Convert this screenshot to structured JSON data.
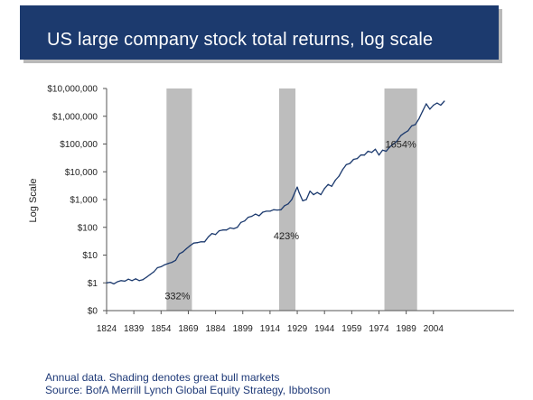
{
  "title": "US large company stock total returns, log scale",
  "footnotes": {
    "line1": "Annual data. Shading denotes great bull markets",
    "line2": "Source: BofA Merrill Lynch Global Equity Strategy, Ibbotson"
  },
  "chart_data": {
    "type": "line",
    "title": "US large company stock total returns, log scale",
    "ylabel": "Log Scale",
    "xlabel": "",
    "yscale": "log10",
    "x_ticks": [
      "1824",
      "1839",
      "1854",
      "1869",
      "1884",
      "1899",
      "1914",
      "1929",
      "1944",
      "1959",
      "1974",
      "1989",
      "2004"
    ],
    "y_ticks": [
      "$0",
      "$1",
      "$10",
      "$100",
      "$1,000",
      "$10,000",
      "$100,000",
      "$1,000,000",
      "$10,000,000"
    ],
    "xlim": [
      1824,
      2010
    ],
    "grid": false,
    "legend": "none",
    "colors": {
      "line": "#1c3a6e",
      "shade": "#bdbdbd",
      "title_bg": "#1c3a6e"
    },
    "shaded_periods": [
      {
        "start": 1857,
        "end": 1871
      },
      {
        "start": 1919,
        "end": 1928
      },
      {
        "start": 1977,
        "end": 1995
      }
    ],
    "annotations": [
      {
        "text": "332%",
        "x": 1863,
        "y": 0.35
      },
      {
        "text": "423%",
        "x": 1923,
        "y": 50
      },
      {
        "text": "1654%",
        "x": 1986,
        "y": 100000
      }
    ],
    "series": [
      {
        "values": [
          [
            1824,
            1.0
          ],
          [
            1826,
            1.05
          ],
          [
            1828,
            0.92
          ],
          [
            1830,
            1.1
          ],
          [
            1832,
            1.2
          ],
          [
            1834,
            1.15
          ],
          [
            1836,
            1.35
          ],
          [
            1838,
            1.2
          ],
          [
            1840,
            1.4
          ],
          [
            1842,
            1.2
          ],
          [
            1844,
            1.3
          ],
          [
            1846,
            1.6
          ],
          [
            1848,
            2.0
          ],
          [
            1850,
            2.5
          ],
          [
            1852,
            3.5
          ],
          [
            1854,
            3.8
          ],
          [
            1856,
            4.5
          ],
          [
            1858,
            5.0
          ],
          [
            1860,
            5.5
          ],
          [
            1862,
            6.5
          ],
          [
            1864,
            11
          ],
          [
            1866,
            13
          ],
          [
            1868,
            17
          ],
          [
            1870,
            22
          ],
          [
            1872,
            27
          ],
          [
            1874,
            28
          ],
          [
            1876,
            30
          ],
          [
            1878,
            30
          ],
          [
            1880,
            45
          ],
          [
            1882,
            60
          ],
          [
            1884,
            55
          ],
          [
            1886,
            75
          ],
          [
            1888,
            80
          ],
          [
            1890,
            80
          ],
          [
            1892,
            95
          ],
          [
            1894,
            90
          ],
          [
            1896,
            100
          ],
          [
            1898,
            150
          ],
          [
            1900,
            170
          ],
          [
            1902,
            230
          ],
          [
            1904,
            250
          ],
          [
            1906,
            300
          ],
          [
            1908,
            260
          ],
          [
            1910,
            350
          ],
          [
            1912,
            380
          ],
          [
            1914,
            380
          ],
          [
            1916,
            430
          ],
          [
            1918,
            420
          ],
          [
            1920,
            430
          ],
          [
            1922,
            600
          ],
          [
            1924,
            700
          ],
          [
            1926,
            1000
          ],
          [
            1928,
            2000
          ],
          [
            1929,
            2800
          ],
          [
            1930,
            1800
          ],
          [
            1932,
            900
          ],
          [
            1934,
            1000
          ],
          [
            1936,
            2000
          ],
          [
            1938,
            1500
          ],
          [
            1940,
            1800
          ],
          [
            1942,
            1500
          ],
          [
            1944,
            2500
          ],
          [
            1946,
            3500
          ],
          [
            1948,
            3000
          ],
          [
            1950,
            5000
          ],
          [
            1952,
            7000
          ],
          [
            1954,
            12000
          ],
          [
            1956,
            18000
          ],
          [
            1958,
            20000
          ],
          [
            1960,
            28000
          ],
          [
            1962,
            30000
          ],
          [
            1964,
            40000
          ],
          [
            1966,
            40000
          ],
          [
            1968,
            55000
          ],
          [
            1970,
            50000
          ],
          [
            1972,
            65000
          ],
          [
            1974,
            40000
          ],
          [
            1976,
            60000
          ],
          [
            1978,
            55000
          ],
          [
            1980,
            80000
          ],
          [
            1982,
            100000
          ],
          [
            1984,
            130000
          ],
          [
            1986,
            200000
          ],
          [
            1988,
            250000
          ],
          [
            1990,
            300000
          ],
          [
            1992,
            450000
          ],
          [
            1994,
            500000
          ],
          [
            1996,
            800000
          ],
          [
            1998,
            1500000
          ],
          [
            2000,
            2800000
          ],
          [
            2002,
            1800000
          ],
          [
            2004,
            2500000
          ],
          [
            2006,
            3000000
          ],
          [
            2008,
            2500000
          ],
          [
            2010,
            3500000
          ]
        ]
      }
    ]
  }
}
